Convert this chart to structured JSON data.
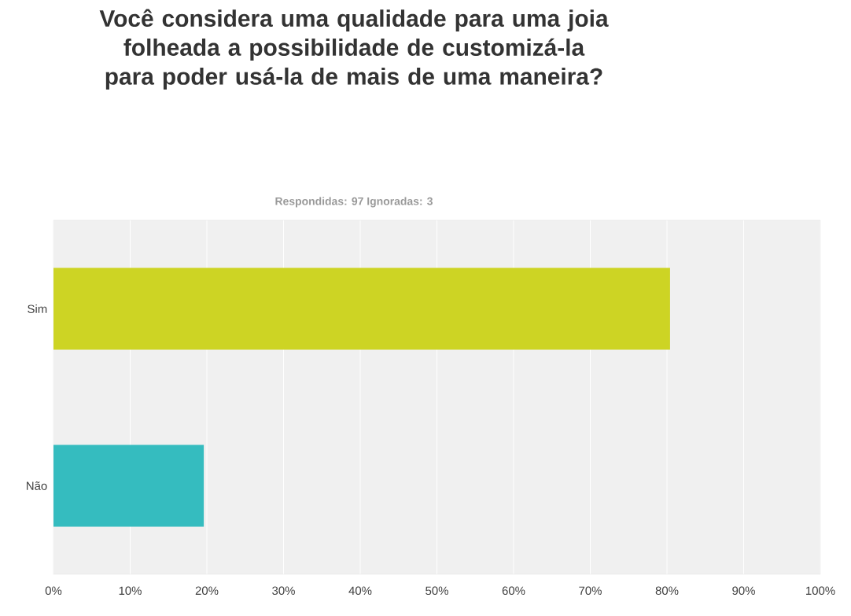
{
  "chart_data": {
    "type": "bar",
    "orientation": "horizontal",
    "title": "Você considera uma qualidade para uma joia folheada a possibilidade de customizá-la para poder usá-la de mais de uma maneira?",
    "subtitle": "Respondidas: 97    Ignoradas: 3",
    "categories": [
      "Sim",
      "Não"
    ],
    "values": [
      80.4,
      19.6
    ],
    "colors": [
      "#cdd424",
      "#35bcbf"
    ],
    "xlim": [
      0,
      100
    ],
    "xticks": [
      {
        "value": 0,
        "label": "0%"
      },
      {
        "value": 10,
        "label": "10%"
      },
      {
        "value": 20,
        "label": "20%"
      },
      {
        "value": 30,
        "label": "30%"
      },
      {
        "value": 40,
        "label": "40%"
      },
      {
        "value": 50,
        "label": "50%"
      },
      {
        "value": 60,
        "label": "60%"
      },
      {
        "value": 70,
        "label": "70%"
      },
      {
        "value": 80,
        "label": "80%"
      },
      {
        "value": 90,
        "label": "90%"
      },
      {
        "value": 100,
        "label": "100%"
      }
    ],
    "grid": "x"
  }
}
